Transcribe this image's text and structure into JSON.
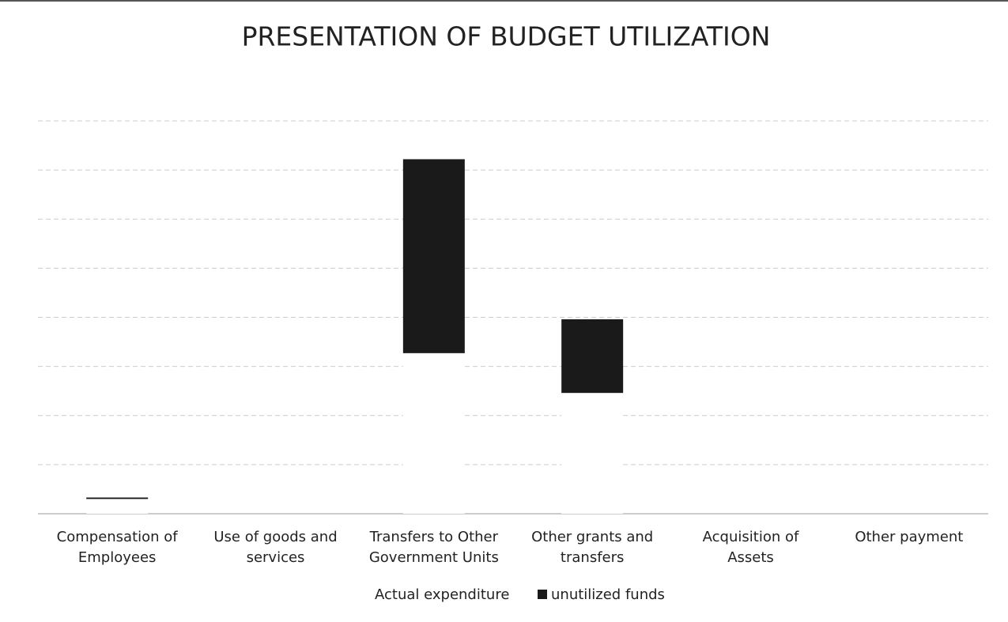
{
  "chart_data": {
    "type": "stacked_bar",
    "title": "PRESENTATION OF BUDGET UTILIZATION",
    "categories": [
      "Compensation of Employees",
      "Use of goods and services",
      "Transfers to Other Government Units",
      "Other grants and transfers",
      "Acquisition of Assets",
      "Other payment"
    ],
    "series": [
      {
        "name": "Actual expenditure",
        "color": "#ffffff",
        "values": [
          0.3,
          0,
          3.27,
          2.46,
          0,
          0
        ]
      },
      {
        "name": "unutilized funds",
        "color": "#1a1a1a",
        "values": [
          0.03,
          0,
          3.95,
          1.5,
          0,
          0
        ]
      }
    ],
    "ylim": [
      0,
      8
    ],
    "yticks": [
      0,
      1,
      2,
      3,
      4,
      5,
      6,
      7,
      8
    ],
    "grid": true,
    "legend": "bottom"
  }
}
